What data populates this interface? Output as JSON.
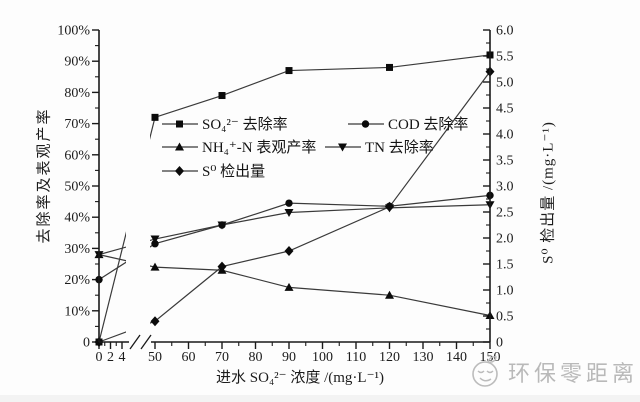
{
  "watermark": {
    "text": "环保零距离",
    "logo": "smiley-face-logo",
    "color": "#b9b9b9"
  },
  "chart_data": {
    "type": "line",
    "title": "",
    "xlabel": "进水 SO₄²⁻ 浓度 /(mg·L⁻¹)",
    "ylabel_left": "去除率及表观产率",
    "ylabel_right": "S⁰ 检出量 /(mg·L⁻¹)",
    "x": [
      0,
      50,
      70,
      90,
      120,
      150
    ],
    "x_break": {
      "from": 4,
      "to": 50
    },
    "xlim": [
      0,
      150
    ],
    "ylim_left": [
      0,
      100
    ],
    "ylim_right": [
      0,
      6.0
    ],
    "grid": "off",
    "legend_position": "inside-upper-left",
    "x_ticks": {
      "values": [
        0,
        2,
        4,
        50,
        60,
        70,
        80,
        90,
        100,
        110,
        120,
        130,
        140,
        150
      ],
      "labels": [
        "0",
        "2",
        "4",
        "50",
        "60",
        "70",
        "80",
        "90",
        "100",
        "110",
        "120",
        "130",
        "140",
        "150"
      ],
      "minor_values": [
        1,
        3,
        55,
        65,
        75,
        85,
        95,
        105,
        115,
        125,
        135,
        145
      ]
    },
    "y_left_ticks": {
      "values": [
        0,
        10,
        20,
        30,
        40,
        50,
        60,
        70,
        80,
        90,
        100
      ],
      "labels": [
        "0",
        "10%",
        "20%",
        "30%",
        "40%",
        "50%",
        "60%",
        "70%",
        "80%",
        "90%",
        "100%"
      ],
      "minor_values": [
        5,
        15,
        25,
        35,
        45,
        55,
        65,
        75,
        85,
        95
      ]
    },
    "y_right_ticks": {
      "values": [
        0,
        0.5,
        1.0,
        1.5,
        2.0,
        2.5,
        3.0,
        3.5,
        4.0,
        4.5,
        5.0,
        5.5,
        6.0
      ],
      "labels": [
        "0",
        "0.5",
        "1.0",
        "1.5",
        "2.0",
        "2.5",
        "3.0",
        "3.5",
        "4.0",
        "4.5",
        "5.0",
        "5.5",
        "6.0"
      ],
      "minor_values": [
        0.25,
        0.75,
        1.25,
        1.75,
        2.25,
        2.75,
        3.25,
        3.75,
        4.25,
        4.75,
        5.25,
        5.75
      ]
    },
    "series": [
      {
        "name": "SO₄²⁻ 去除率",
        "marker": "square",
        "axis": "left",
        "unit": "%",
        "values": [
          0,
          72,
          79,
          87,
          88,
          92
        ]
      },
      {
        "name": "COD 去除率",
        "marker": "circle",
        "axis": "left",
        "unit": "%",
        "values": [
          20,
          31.5,
          37.5,
          44.5,
          43.5,
          47
        ]
      },
      {
        "name": "NH₄⁺-N 表观产率",
        "marker": "triangle-up",
        "axis": "left",
        "unit": "%",
        "values": [
          28,
          24,
          23,
          17.5,
          15,
          8.5
        ]
      },
      {
        "name": "TN 去除率",
        "marker": "triangle-down",
        "axis": "left",
        "unit": "%",
        "values": [
          28,
          33,
          37.5,
          41.5,
          43,
          44
        ]
      },
      {
        "name": "S⁰ 检出量",
        "marker": "diamond",
        "axis": "right",
        "unit": "mg·L⁻¹",
        "values": [
          0,
          0.4,
          1.45,
          1.75,
          2.6,
          5.2
        ]
      }
    ],
    "colors": {
      "line": "#3a3a3a",
      "marker": "#0b0b0b",
      "axis": "#1a1a1a"
    }
  }
}
